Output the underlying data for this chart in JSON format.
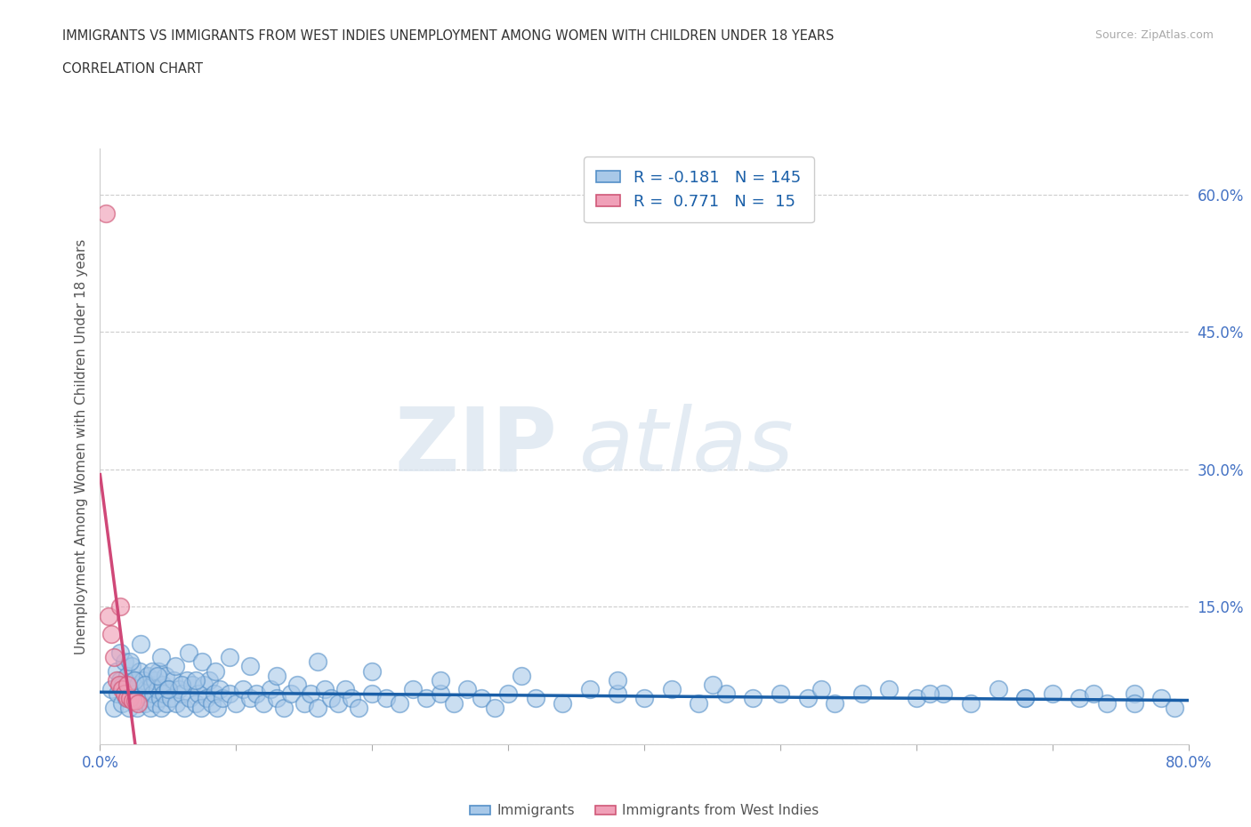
{
  "title": "IMMIGRANTS VS IMMIGRANTS FROM WEST INDIES UNEMPLOYMENT AMONG WOMEN WITH CHILDREN UNDER 18 YEARS",
  "subtitle": "CORRELATION CHART",
  "source": "Source: ZipAtlas.com",
  "ylabel": "Unemployment Among Women with Children Under 18 years",
  "xlim": [
    0.0,
    0.8
  ],
  "ylim": [
    0.0,
    0.65
  ],
  "xticks": [
    0.0,
    0.1,
    0.2,
    0.3,
    0.4,
    0.5,
    0.6,
    0.7,
    0.8
  ],
  "xticklabels": [
    "0.0%",
    "",
    "",
    "",
    "",
    "",
    "",
    "",
    "80.0%"
  ],
  "yticks": [
    0.0,
    0.15,
    0.3,
    0.45,
    0.6
  ],
  "yticklabels": [
    "",
    "15.0%",
    "30.0%",
    "45.0%",
    "60.0%"
  ],
  "blue_fill": "#a8c8e8",
  "blue_edge": "#5590c8",
  "pink_fill": "#f0a0b8",
  "pink_edge": "#d05878",
  "blue_line_color": "#1a5fa8",
  "pink_line_color": "#d04878",
  "background_color": "#ffffff",
  "watermark_zip": "ZIP",
  "watermark_atlas": "atlas",
  "legend_R_blue": "-0.181",
  "legend_N_blue": "145",
  "legend_R_pink": "0.771",
  "legend_N_pink": "15",
  "blue_scatter_x": [
    0.008,
    0.01,
    0.012,
    0.013,
    0.015,
    0.016,
    0.017,
    0.018,
    0.019,
    0.02,
    0.021,
    0.022,
    0.023,
    0.024,
    0.025,
    0.026,
    0.027,
    0.028,
    0.029,
    0.03,
    0.031,
    0.032,
    0.033,
    0.034,
    0.035,
    0.036,
    0.037,
    0.038,
    0.039,
    0.04,
    0.041,
    0.042,
    0.043,
    0.044,
    0.045,
    0.046,
    0.047,
    0.048,
    0.049,
    0.05,
    0.052,
    0.054,
    0.056,
    0.058,
    0.06,
    0.062,
    0.064,
    0.066,
    0.068,
    0.07,
    0.072,
    0.074,
    0.076,
    0.078,
    0.08,
    0.082,
    0.084,
    0.086,
    0.088,
    0.09,
    0.095,
    0.1,
    0.105,
    0.11,
    0.115,
    0.12,
    0.125,
    0.13,
    0.135,
    0.14,
    0.145,
    0.15,
    0.155,
    0.16,
    0.165,
    0.17,
    0.175,
    0.18,
    0.185,
    0.19,
    0.2,
    0.21,
    0.22,
    0.23,
    0.24,
    0.25,
    0.26,
    0.27,
    0.28,
    0.29,
    0.3,
    0.32,
    0.34,
    0.36,
    0.38,
    0.4,
    0.42,
    0.44,
    0.46,
    0.48,
    0.5,
    0.52,
    0.54,
    0.56,
    0.58,
    0.6,
    0.62,
    0.64,
    0.66,
    0.68,
    0.7,
    0.72,
    0.74,
    0.76,
    0.78,
    0.015,
    0.022,
    0.03,
    0.038,
    0.045,
    0.055,
    0.065,
    0.075,
    0.085,
    0.095,
    0.11,
    0.13,
    0.16,
    0.2,
    0.25,
    0.31,
    0.38,
    0.45,
    0.53,
    0.61,
    0.68,
    0.73,
    0.76,
    0.79,
    0.025,
    0.033,
    0.042,
    0.05,
    0.06,
    0.07
  ],
  "blue_scatter_y": [
    0.06,
    0.04,
    0.08,
    0.055,
    0.07,
    0.045,
    0.065,
    0.09,
    0.05,
    0.075,
    0.04,
    0.06,
    0.085,
    0.05,
    0.07,
    0.055,
    0.04,
    0.065,
    0.08,
    0.048,
    0.055,
    0.07,
    0.045,
    0.06,
    0.075,
    0.05,
    0.04,
    0.065,
    0.055,
    0.07,
    0.045,
    0.06,
    0.08,
    0.05,
    0.04,
    0.065,
    0.055,
    0.075,
    0.045,
    0.06,
    0.05,
    0.07,
    0.045,
    0.06,
    0.055,
    0.04,
    0.07,
    0.05,
    0.065,
    0.045,
    0.055,
    0.04,
    0.065,
    0.05,
    0.07,
    0.045,
    0.055,
    0.04,
    0.06,
    0.05,
    0.055,
    0.045,
    0.06,
    0.05,
    0.055,
    0.045,
    0.06,
    0.05,
    0.04,
    0.055,
    0.065,
    0.045,
    0.055,
    0.04,
    0.06,
    0.05,
    0.045,
    0.06,
    0.05,
    0.04,
    0.055,
    0.05,
    0.045,
    0.06,
    0.05,
    0.055,
    0.045,
    0.06,
    0.05,
    0.04,
    0.055,
    0.05,
    0.045,
    0.06,
    0.055,
    0.05,
    0.06,
    0.045,
    0.055,
    0.05,
    0.055,
    0.05,
    0.045,
    0.055,
    0.06,
    0.05,
    0.055,
    0.045,
    0.06,
    0.05,
    0.055,
    0.05,
    0.045,
    0.055,
    0.05,
    0.1,
    0.09,
    0.11,
    0.08,
    0.095,
    0.085,
    0.1,
    0.09,
    0.08,
    0.095,
    0.085,
    0.075,
    0.09,
    0.08,
    0.07,
    0.075,
    0.07,
    0.065,
    0.06,
    0.055,
    0.05,
    0.055,
    0.045,
    0.04,
    0.07,
    0.065,
    0.075,
    0.06,
    0.065,
    0.07
  ],
  "pink_scatter_x": [
    0.004,
    0.006,
    0.008,
    0.01,
    0.012,
    0.014,
    0.016,
    0.018,
    0.02,
    0.022,
    0.024,
    0.026,
    0.028,
    0.015,
    0.02
  ],
  "pink_scatter_y": [
    0.58,
    0.14,
    0.12,
    0.095,
    0.07,
    0.065,
    0.06,
    0.055,
    0.05,
    0.05,
    0.048,
    0.048,
    0.045,
    0.15,
    0.065
  ]
}
